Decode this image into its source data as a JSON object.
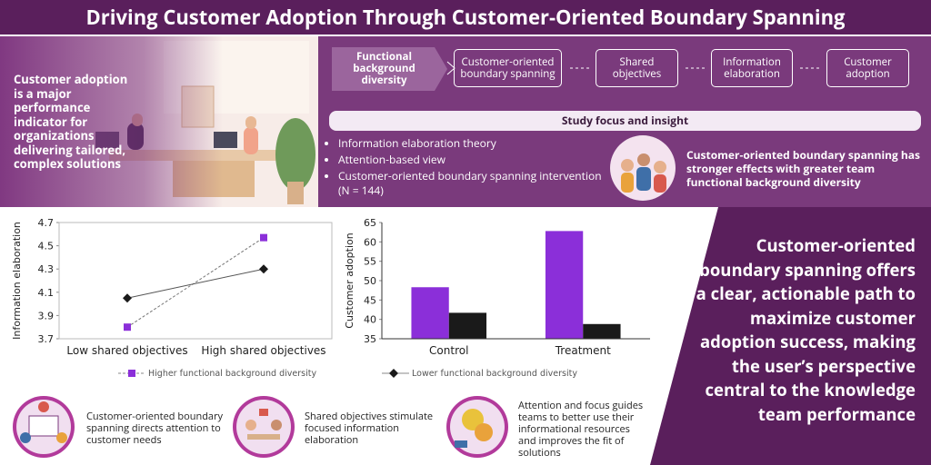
{
  "header": {
    "title": "Driving Customer Adoption Through Customer-Oriented Boundary Spanning"
  },
  "intro": {
    "text": "Customer adoption is a major performance indicator for organizations delivering tailored, complex solutions"
  },
  "flow": {
    "steps": [
      "Functional background diversity",
      "Customer-oriented boundary spanning",
      "Shared objectives",
      "Information elaboration",
      "Customer adoption"
    ]
  },
  "study": {
    "heading": "Study focus and insight",
    "bullets": [
      "Information elaboration theory",
      "Attention-based view",
      "Customer-oriented boundary spanning intervention (N = 144)"
    ],
    "insight": "Customer-oriented boundary spanning has stronger effects with greater team functional background diversity"
  },
  "chart_data": [
    {
      "type": "line",
      "ylabel": "Information elaboration",
      "categories": [
        "Low shared objectives",
        "High shared objectives"
      ],
      "series": [
        {
          "name": "Higher functional background diversity",
          "color": "#8b2fd9",
          "values": [
            3.8,
            4.57
          ]
        },
        {
          "name": "Lower functional background diversity",
          "color": "#1a1a1a",
          "values": [
            4.05,
            4.3
          ]
        }
      ],
      "ylim": [
        3.7,
        4.7
      ],
      "yticks": [
        3.7,
        3.9,
        4.1,
        4.3,
        4.5,
        4.7
      ]
    },
    {
      "type": "bar",
      "ylabel": "Customer adoption",
      "categories": [
        "Control",
        "Treatment"
      ],
      "series": [
        {
          "color": "#8b2fd9",
          "values": [
            48.3,
            62.8
          ]
        },
        {
          "color": "#1a1a1a",
          "values": [
            41.7,
            38.8
          ]
        }
      ],
      "ylim": [
        35,
        65
      ],
      "yticks": [
        35,
        40,
        45,
        50,
        55,
        60,
        65
      ]
    }
  ],
  "mechanisms": [
    "Customer-oriented boundary spanning directs attention to customer needs",
    "Shared objectives stimulate focused information elaboration",
    "Attention and focus guides teams to better use their informational resources and improves the fit of solutions"
  ],
  "conclusion": "Customer-oriented boundary spanning offers a clear, actionable path to maximize customer adoption success, making the user’s perspective central to the knowledge team performance"
}
